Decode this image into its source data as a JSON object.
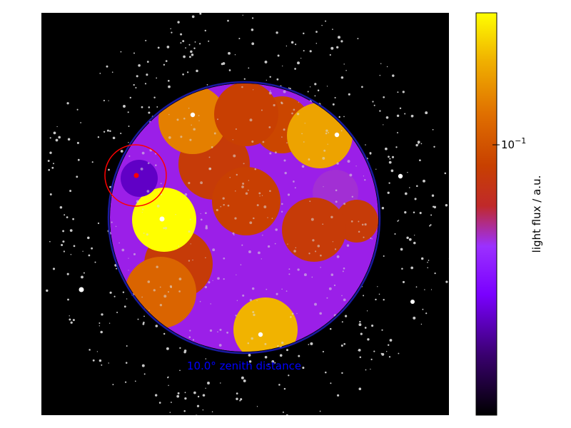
{
  "chart_data": {
    "type": "heatmap",
    "title": "",
    "annotation": "10.0° zenith distance",
    "colorbar": {
      "label": "light flux / a.u.",
      "scale": "log",
      "tick_base": "10",
      "tick_exponent": "−1",
      "colormap": "gnuplot",
      "colors": [
        "#000000",
        "#3a0070",
        "#7a00ff",
        "#9b30ff",
        "#c0292a",
        "#c84000",
        "#e07000",
        "#f0b000",
        "#ffff00"
      ]
    },
    "patches_flux_level": [
      {
        "region": "top-left",
        "level": 0.78
      },
      {
        "region": "top-center",
        "level": 0.62
      },
      {
        "region": "top-right",
        "level": 0.85
      },
      {
        "region": "left-bright",
        "level": 1.0
      },
      {
        "region": "center",
        "level": 0.62
      },
      {
        "region": "right",
        "level": 0.6
      },
      {
        "region": "bottom-left",
        "level": 0.72
      },
      {
        "region": "bottom-center",
        "level": 0.88
      },
      {
        "region": "dark-left",
        "level": 0.2
      }
    ],
    "colors": {
      "sky": "#000000",
      "horizon_ring": "#1a1aa0",
      "annotation_text": "#0000ff",
      "highlight_circle": "#ff0000",
      "stars": "#c8c8c8"
    }
  }
}
